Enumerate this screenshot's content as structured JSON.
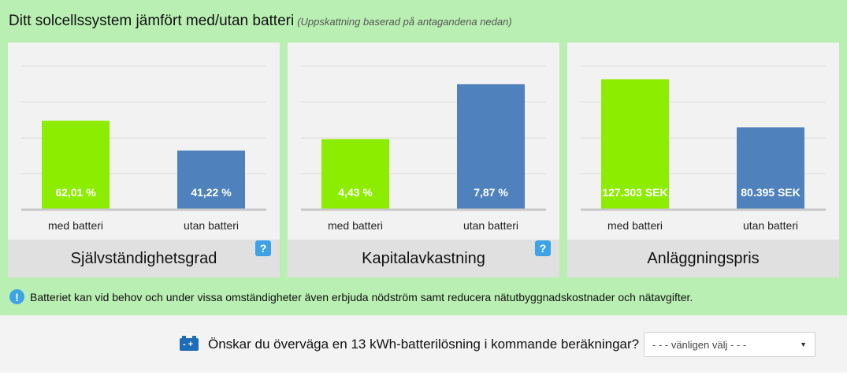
{
  "header": {
    "title": "Ditt solcellssystem jämfört med/utan batteri",
    "subtitle": "(Uppskattning baserad på antagandena nedan)"
  },
  "colors": {
    "with_battery": "#8ded00",
    "without_battery": "#4f81bd",
    "panel": "#b9efb2"
  },
  "chart_data": [
    {
      "type": "bar",
      "title": "Självständighetsgrad",
      "categories": [
        "med batteri",
        "utan batteri"
      ],
      "values": [
        62.01,
        41.22
      ],
      "value_labels": [
        "62,01 %",
        "41,22 %"
      ],
      "ylim": [
        0,
        100
      ],
      "grid": true,
      "help_icon": "question-icon"
    },
    {
      "type": "bar",
      "title": "Kapitalavkastning",
      "categories": [
        "med batteri",
        "utan batteri"
      ],
      "values": [
        4.43,
        7.87
      ],
      "value_labels": [
        "4,43 %",
        "7,87 %"
      ],
      "ylim": [
        0,
        9
      ],
      "grid": true,
      "help_icon": "question-icon"
    },
    {
      "type": "bar",
      "title": "Anläggningspris",
      "categories": [
        "med batteri",
        "utan batteri"
      ],
      "values": [
        127303,
        80395
      ],
      "value_labels": [
        "127.303 SEK",
        "80.395 SEK"
      ],
      "ylim": [
        0,
        140000
      ],
      "grid": true
    }
  ],
  "note": {
    "icon": "info-icon",
    "text": "Batteriet kan vid behov och under vissa omständigheter även erbjuda nödström samt reducera nätutbyggnadskostnader och nätavgifter."
  },
  "question": {
    "icon": "battery-icon",
    "text": "Önskar du överväga en 13 kWh-batterilösning i kommande beräkningar?",
    "select_value": "- - - vänligen välj - - -"
  }
}
